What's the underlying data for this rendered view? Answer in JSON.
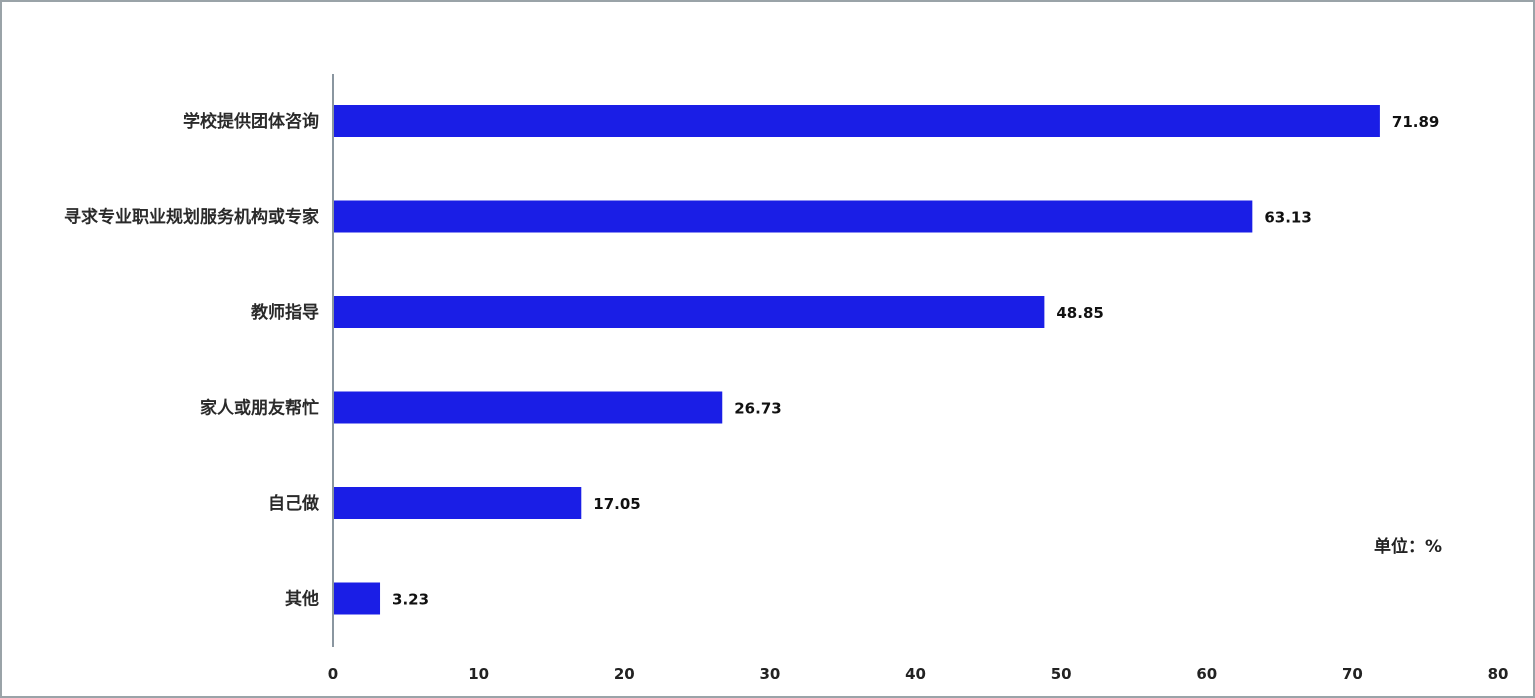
{
  "chart_data": {
    "type": "bar",
    "orientation": "horizontal",
    "categories": [
      "学校提供团体咨询",
      "寻求专业职业规划服务机构或专家",
      "教师指导",
      "家人或朋友帮忙",
      "自己做",
      "其他"
    ],
    "values": [
      71.89,
      63.13,
      48.85,
      26.73,
      17.05,
      3.23
    ],
    "value_labels": [
      "71.89",
      "63.13",
      "48.85",
      "26.73",
      "17.05",
      "3.23"
    ],
    "xticks": [
      "0",
      "10",
      "20",
      "30",
      "40",
      "50",
      "60",
      "70",
      "80"
    ],
    "xlim": [
      0,
      80
    ],
    "unit_note": "单位：%",
    "bar_color": "#1a1ee6",
    "axis_color": "#8a96a0",
    "grid": false,
    "title": "",
    "xlabel": "",
    "ylabel": ""
  }
}
